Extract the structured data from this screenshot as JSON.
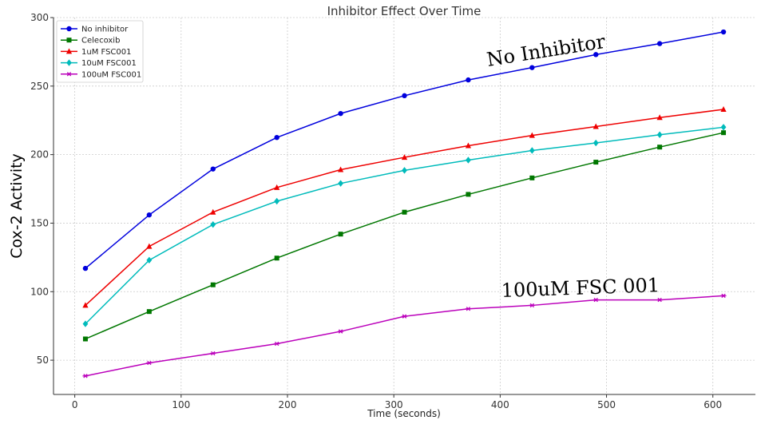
{
  "chart_data": {
    "type": "line",
    "title": "Inhibitor Effect Over Time",
    "xlabel": "Time (seconds)",
    "ylabel": "Cox-2 Activity",
    "xlim": [
      -20,
      640
    ],
    "ylim": [
      25,
      300
    ],
    "xticks": [
      0,
      100,
      200,
      300,
      400,
      500,
      600
    ],
    "yticks": [
      50,
      100,
      150,
      200,
      250,
      300
    ],
    "grid": true,
    "legend_position": "top-left",
    "x": [
      10,
      70,
      130,
      190,
      250,
      310,
      370,
      430,
      490,
      550,
      610
    ],
    "series": [
      {
        "name": "No inhibitor",
        "color": "#0000dd",
        "marker": "circle",
        "values": [
          117,
          156,
          189.5,
          212.5,
          230,
          243,
          254.5,
          263.5,
          273,
          281,
          289.5
        ]
      },
      {
        "name": "Celecoxib",
        "color": "#007700",
        "marker": "square",
        "values": [
          65.5,
          85.5,
          105,
          124.5,
          142,
          158,
          171,
          183,
          194.5,
          205.5,
          216
        ]
      },
      {
        "name": "1uM FSC001",
        "color": "#ee0000",
        "marker": "triangle",
        "values": [
          90,
          133,
          158,
          176,
          189,
          198,
          206.5,
          214,
          220.5,
          227,
          233
        ]
      },
      {
        "name": "10uM FSC001",
        "color": "#00bbbb",
        "marker": "diamond",
        "values": [
          76.5,
          123,
          149,
          166,
          179,
          188.5,
          196,
          203,
          208.5,
          214.5,
          220
        ]
      },
      {
        "name": "100uM FSC001",
        "color": "#bb00bb",
        "marker": "star",
        "values": [
          38.5,
          48,
          55,
          62,
          71,
          82,
          87.5,
          90,
          94,
          94,
          97
        ]
      }
    ],
    "annotations": [
      {
        "text": "No Inhibitor"
      },
      {
        "text": "100uM FSC 001"
      }
    ]
  }
}
